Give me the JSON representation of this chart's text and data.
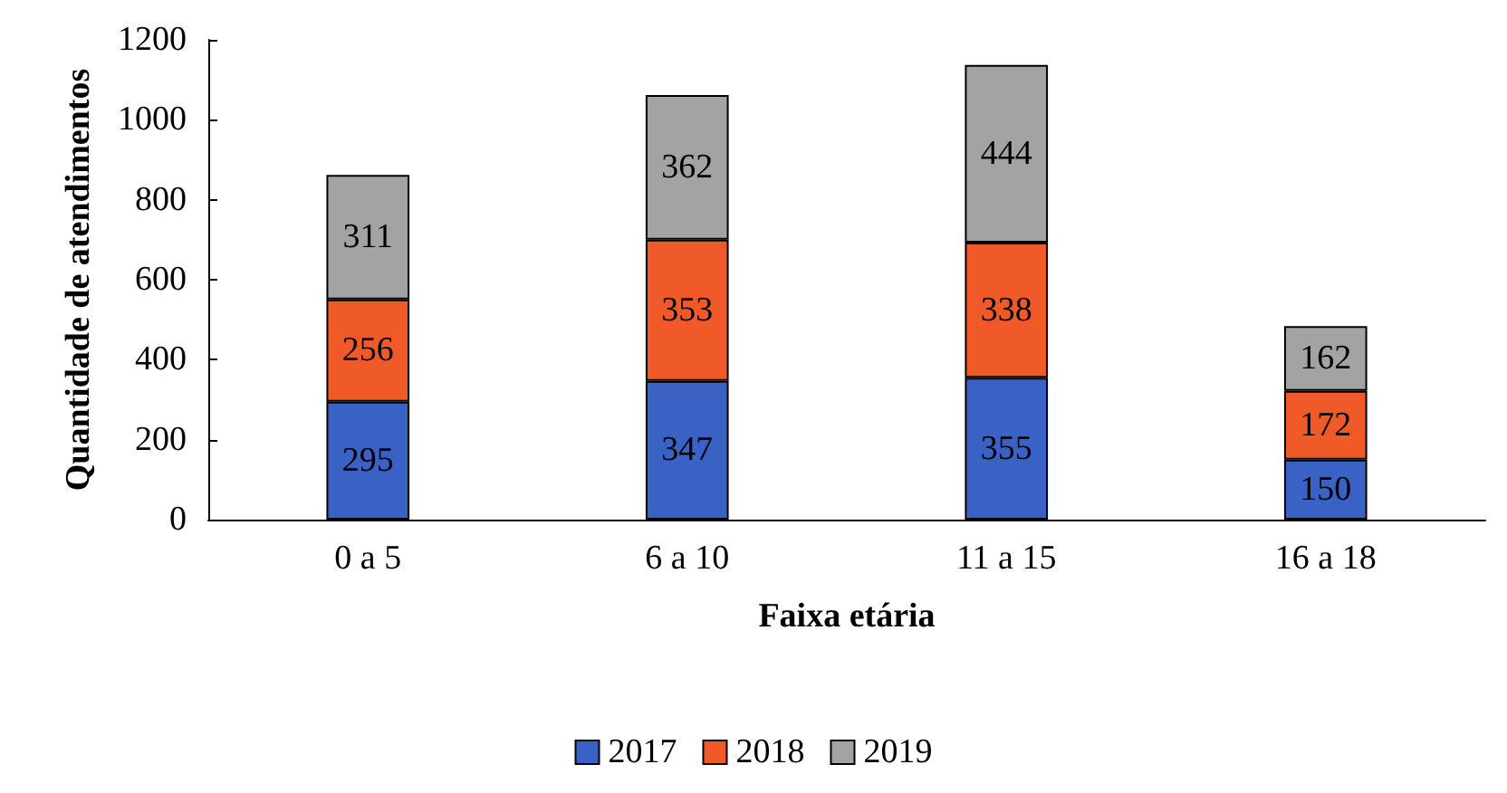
{
  "chart_data": {
    "type": "bar",
    "stacked": true,
    "xlabel": "Faixa etária",
    "ylabel": "Quantidade de atendimentos",
    "categories": [
      "0 a 5",
      "6 a 10",
      "11 a 15",
      "16 a 18"
    ],
    "series": [
      {
        "name": "2017",
        "color": "#3a62c4",
        "values": [
          295,
          347,
          355,
          150
        ]
      },
      {
        "name": "2018",
        "color": "#f05a28",
        "values": [
          256,
          353,
          338,
          172
        ]
      },
      {
        "name": "2019",
        "color": "#a3a3a3",
        "values": [
          311,
          362,
          444,
          162
        ]
      }
    ],
    "ylim": [
      0,
      1200
    ],
    "yticks": [
      0,
      200,
      400,
      600,
      800,
      1000,
      1200
    ],
    "data_labels": true,
    "grid": false,
    "legend": "bottom"
  }
}
